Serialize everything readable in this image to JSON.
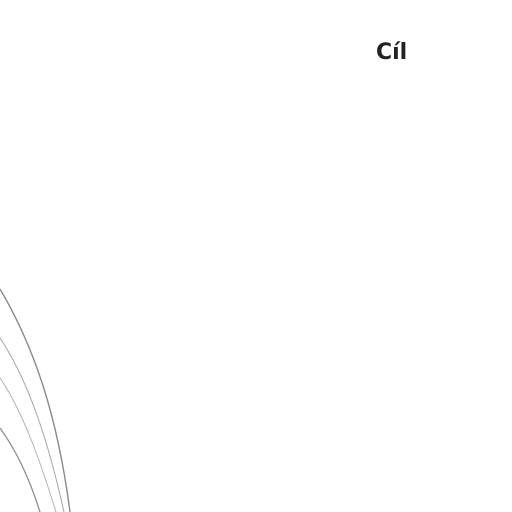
{
  "page": {
    "heading": "Cíl"
  }
}
